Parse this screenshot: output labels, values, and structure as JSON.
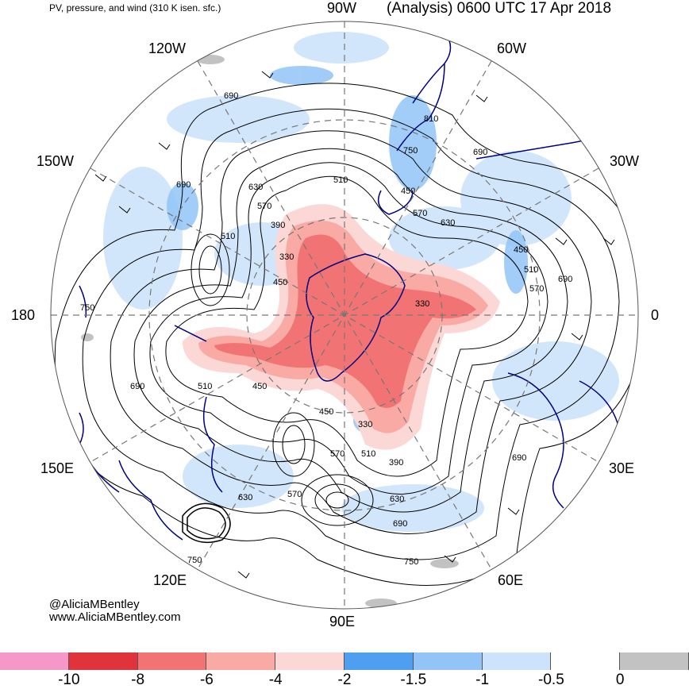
{
  "header": {
    "left_title": "PV, pressure, and wind (310 K isen. sfc.)",
    "right_title": "(Analysis) 0600 UTC 17 Apr 2018"
  },
  "longitude_labels": {
    "lon_90w": "90W",
    "lon_120w": "120W",
    "lon_60w": "60W",
    "lon_150w": "150W",
    "lon_30w": "30W",
    "lon_180": "180",
    "lon_0": "0",
    "lon_150e": "150E",
    "lon_30e": "30E",
    "lon_120e": "120E",
    "lon_60e": "60E",
    "lon_90e": "90E"
  },
  "contour_labels": [
    "690",
    "810",
    "750",
    "690",
    "690",
    "630",
    "510",
    "570",
    "450",
    "570",
    "630",
    "390",
    "510",
    "330",
    "450",
    "510",
    "570",
    "690",
    "450",
    "330",
    "750",
    "690",
    "510",
    "450",
    "450",
    "330",
    "570",
    "510",
    "390",
    "570",
    "630",
    "630",
    "690",
    "750"
  ],
  "credits": {
    "line1": "@AliciaMBentley",
    "line2": "www.AliciaMBentley.com"
  },
  "colorbar": {
    "colors": [
      "#f598c8",
      "#e0333c",
      "#f27373",
      "#f9aaa5",
      "#fbd8d5",
      "#4f9ff0",
      "#92c4f7",
      "#cde3fb",
      "#ffffff",
      "#c2c2c2"
    ],
    "ticks": [
      "-10",
      "-8",
      "-6",
      "-4",
      "-2",
      "-1.5",
      "-1",
      "-0.5",
      "0"
    ]
  },
  "map": {
    "projection": "polar stereographic, south pole centered",
    "land_outline_color": "#000080",
    "gridline_style": "dashed gray",
    "contour_color": "#000000"
  }
}
